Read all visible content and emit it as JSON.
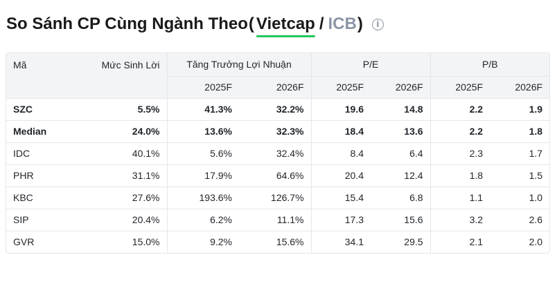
{
  "title": {
    "text": "So Sánh CP Cùng Ngành Theo",
    "open_paren": "(",
    "source_active": "Vietcap",
    "separator": "/",
    "source_inactive": "ICB",
    "close_paren": ")",
    "info_icon": "info-icon",
    "info_glyph": "i"
  },
  "colors": {
    "accent_underline": "#22c55e",
    "muted": "#8b95a5",
    "header_bg": "#f3f4f6"
  },
  "table": {
    "headers": {
      "ticker": "Mã",
      "profitability": "Mức Sinh Lời",
      "growth": "Tăng Trưởng Lợi Nhuận",
      "pe": "P/E",
      "pb": "P/B",
      "years": [
        "2025F",
        "2026F",
        "2025F",
        "2026F",
        "2025F",
        "2026F"
      ]
    },
    "rows": [
      {
        "ticker": "SZC",
        "profit": "5.5%",
        "g25": "41.3%",
        "g26": "32.2%",
        "pe25": "19.6",
        "pe26": "14.8",
        "pb25": "2.2",
        "pb26": "1.9",
        "bold": true
      },
      {
        "ticker": "Median",
        "profit": "24.0%",
        "g25": "13.6%",
        "g26": "32.3%",
        "pe25": "18.4",
        "pe26": "13.6",
        "pb25": "2.2",
        "pb26": "1.8",
        "bold": true
      },
      {
        "ticker": "IDC",
        "profit": "40.1%",
        "g25": "5.6%",
        "g26": "32.4%",
        "pe25": "8.4",
        "pe26": "6.4",
        "pb25": "2.3",
        "pb26": "1.7",
        "bold": false
      },
      {
        "ticker": "PHR",
        "profit": "31.1%",
        "g25": "17.9%",
        "g26": "64.6%",
        "pe25": "20.4",
        "pe26": "12.4",
        "pb25": "1.8",
        "pb26": "1.5",
        "bold": false
      },
      {
        "ticker": "KBC",
        "profit": "27.6%",
        "g25": "193.6%",
        "g26": "126.7%",
        "pe25": "15.4",
        "pe26": "6.8",
        "pb25": "1.1",
        "pb26": "1.0",
        "bold": false
      },
      {
        "ticker": "SIP",
        "profit": "20.4%",
        "g25": "6.2%",
        "g26": "11.1%",
        "pe25": "17.3",
        "pe26": "15.6",
        "pb25": "3.2",
        "pb26": "2.6",
        "bold": false
      },
      {
        "ticker": "GVR",
        "profit": "15.0%",
        "g25": "9.2%",
        "g26": "15.6%",
        "pe25": "34.1",
        "pe26": "29.5",
        "pb25": "2.1",
        "pb26": "2.0",
        "bold": false
      }
    ]
  }
}
